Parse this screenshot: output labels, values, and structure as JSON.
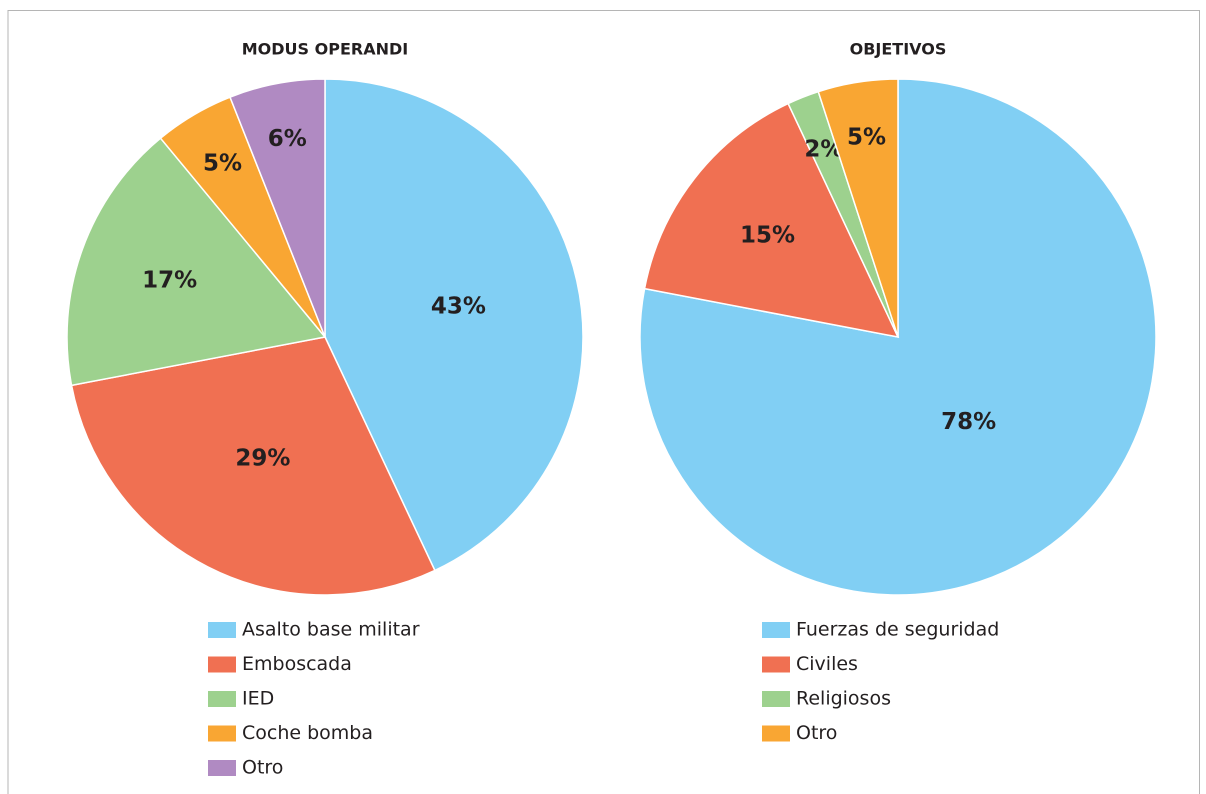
{
  "chart_data": [
    {
      "type": "pie",
      "title": "MODUS OPERANDI",
      "categories": [
        "Asalto base militar",
        "Emboscada",
        "IED",
        "Coche bomba",
        "Otro"
      ],
      "values": [
        43,
        29,
        17,
        5,
        6
      ],
      "value_labels": [
        "43%",
        "29%",
        "17%",
        "5%",
        "6%"
      ],
      "colors": [
        "#81cff4",
        "#f07052",
        "#9dd18e",
        "#f9a633",
        "#b08ac2"
      ]
    },
    {
      "type": "pie",
      "title": "OBJETIVOS",
      "categories": [
        "Fuerzas de seguridad",
        "Civiles",
        "Religiosos",
        "Otro"
      ],
      "values": [
        78,
        15,
        2,
        5
      ],
      "value_labels": [
        "78%",
        "15%",
        "2%",
        "5%"
      ],
      "colors": [
        "#81cff4",
        "#f07052",
        "#9dd18e",
        "#f9a633"
      ]
    }
  ]
}
